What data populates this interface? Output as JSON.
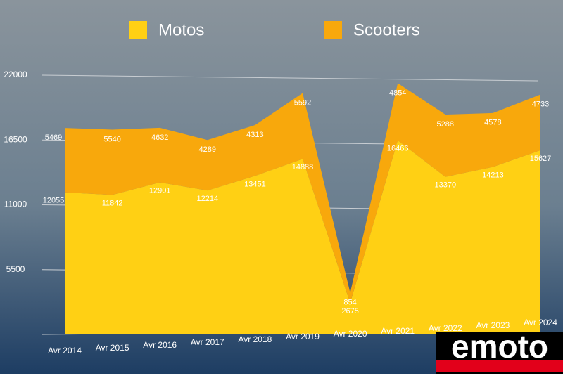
{
  "chart_data": {
    "type": "stacked_area",
    "categories": [
      "Avr 2014",
      "Avr 2015",
      "Avr 2016",
      "Avr 2017",
      "Avr 2018",
      "Avr 2019",
      "Avr 2020",
      "Avr 2021",
      "Avr 2022",
      "Avr 2023",
      "Avr 2024"
    ],
    "series": [
      {
        "name": "Motos",
        "color": "#ffd014",
        "values": [
          12055,
          11842,
          12901,
          12214,
          13451,
          14888,
          2675,
          16466,
          13370,
          14213,
          15627
        ]
      },
      {
        "name": "Scooters",
        "color": "#f8a80c",
        "values": [
          5469,
          5540,
          4632,
          4289,
          4313,
          5592,
          854,
          4854,
          5288,
          4578,
          4733
        ]
      }
    ],
    "ylim": [
      0,
      22000
    ],
    "yticks": [
      5500,
      11000,
      16500,
      22000
    ],
    "grid": true
  },
  "logo": "emoto"
}
